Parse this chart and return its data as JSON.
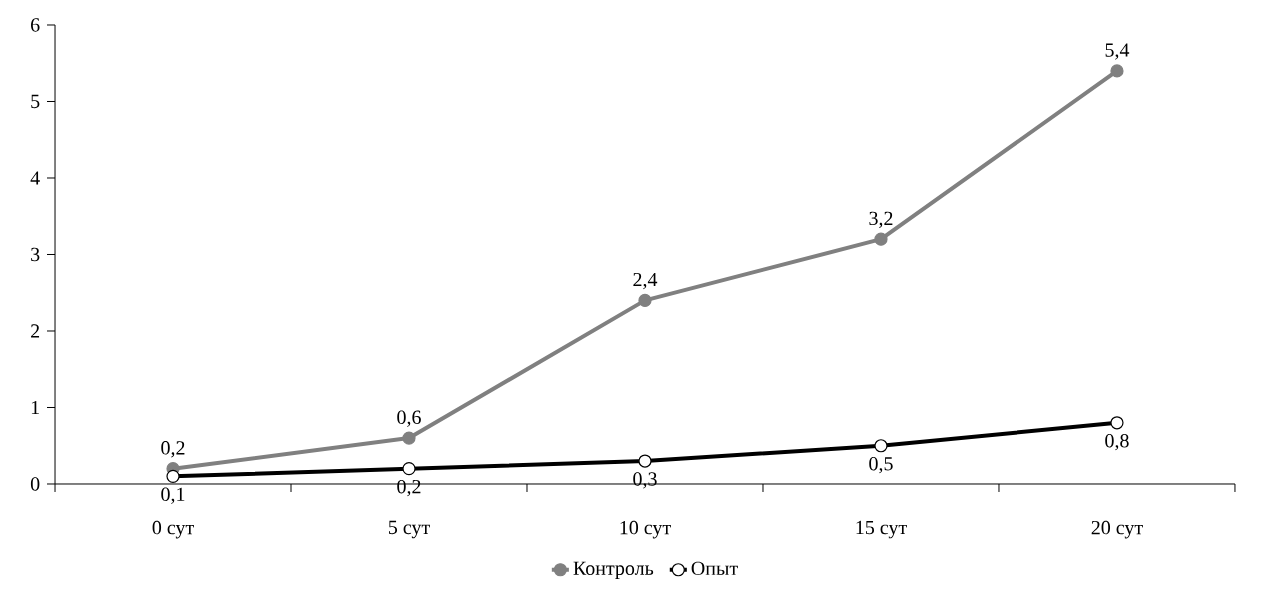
{
  "chart_data": {
    "type": "line",
    "categories": [
      "0 сут",
      "5 сут",
      "10 сут",
      "15 сут",
      "20 сут"
    ],
    "series": [
      {
        "name": "Контроль",
        "color": "#808080",
        "values": [
          0.2,
          0.6,
          2.4,
          3.2,
          5.4
        ],
        "value_labels": [
          "0,2",
          "0,6",
          "2,4",
          "3,2",
          "5,4"
        ]
      },
      {
        "name": "Опыт",
        "color": "#000000",
        "values": [
          0.1,
          0.2,
          0.3,
          0.5,
          0.8
        ],
        "value_labels": [
          "0,1",
          "0,2",
          "0,3",
          "0,5",
          "0,8"
        ]
      }
    ],
    "ylim": [
      0,
      6
    ],
    "yticks": [
      0,
      1,
      2,
      3,
      4,
      5,
      6
    ],
    "grid": false,
    "legend": "bottom",
    "marker": "circle",
    "line_style": "solid",
    "data_labels": true
  }
}
